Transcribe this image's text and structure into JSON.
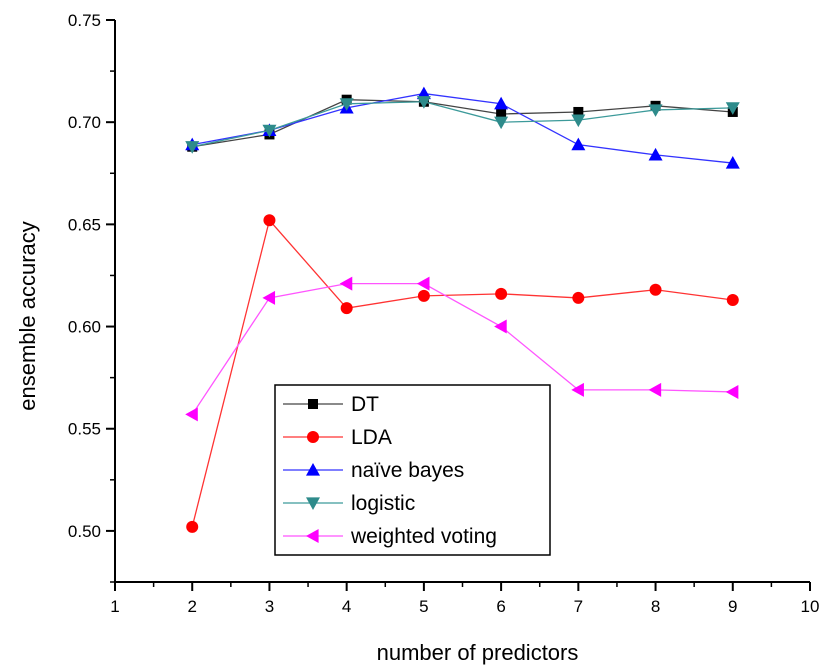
{
  "chart_data": {
    "type": "line",
    "title": "",
    "xlabel": "number of predictors",
    "ylabel": "ensemble accuracy",
    "xlim": [
      1,
      10
    ],
    "ylim": [
      0.475,
      0.75
    ],
    "xticks": [
      "1",
      "2",
      "3",
      "4",
      "5",
      "6",
      "7",
      "8",
      "9",
      "10"
    ],
    "yticks": [
      "0.50",
      "0.55",
      "0.60",
      "0.65",
      "0.70",
      "0.75"
    ],
    "grid": false,
    "legend_position": "bottom-center",
    "x": [
      2,
      3,
      4,
      5,
      6,
      7,
      8,
      9
    ],
    "series": [
      {
        "name": "DT",
        "color": "#000000",
        "line_color": "#444444",
        "marker": "square",
        "values": [
          0.688,
          0.694,
          0.711,
          0.71,
          0.704,
          0.705,
          0.708,
          0.705
        ]
      },
      {
        "name": "LDA",
        "color": "#ff0000",
        "line_color": "#ff3333",
        "marker": "circle",
        "values": [
          0.502,
          0.652,
          0.609,
          0.615,
          0.616,
          0.614,
          0.618,
          0.613
        ]
      },
      {
        "name": "naïve bayes",
        "color": "#0000ff",
        "line_color": "#3333ff",
        "marker": "triangle-up",
        "values": [
          0.689,
          0.696,
          0.707,
          0.714,
          0.709,
          0.689,
          0.684,
          0.68
        ]
      },
      {
        "name": "logistic",
        "color": "#2e8b8b",
        "line_color": "#3c9a9a",
        "marker": "triangle-down",
        "values": [
          0.688,
          0.696,
          0.709,
          0.71,
          0.7,
          0.701,
          0.706,
          0.707
        ]
      },
      {
        "name": "weighted voting",
        "color": "#ff00ff",
        "line_color": "#ff55ff",
        "marker": "triangle-left",
        "values": [
          0.557,
          0.614,
          0.621,
          0.621,
          0.6,
          0.569,
          0.569,
          0.568
        ]
      }
    ]
  }
}
